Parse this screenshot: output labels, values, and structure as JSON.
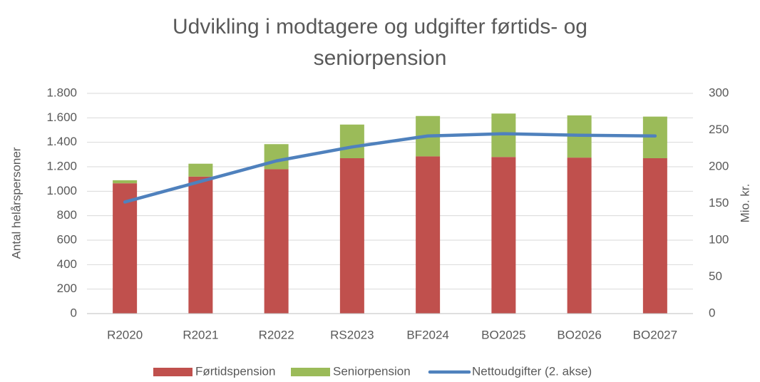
{
  "chart_data": {
    "type": "bar",
    "title": "Udvikling i modtagere og udgifter førtids- og seniorpension",
    "y_label": "Antal helårspersoner",
    "y2_label": "Mio. kr.",
    "categories": [
      "R2020",
      "R2021",
      "R2022",
      "RS2023",
      "BF2024",
      "BO2025",
      "BO2026",
      "BO2027"
    ],
    "series": [
      {
        "name": "Førtidspension",
        "color": "#c0504d",
        "type": "bar",
        "values": [
          1065,
          1120,
          1180,
          1270,
          1285,
          1280,
          1275,
          1270
        ]
      },
      {
        "name": "Seniorpension",
        "color": "#9bbb59",
        "type": "bar",
        "values": [
          25,
          105,
          205,
          275,
          330,
          355,
          345,
          340
        ]
      },
      {
        "name": "Nettoudgifter (2. akse)",
        "color": "#4f81bd",
        "type": "line",
        "axis": "y2",
        "values": [
          152,
          180,
          208,
          227,
          242,
          245,
          243,
          242
        ]
      }
    ],
    "stacked": true,
    "ylim": [
      0,
      1800
    ],
    "yticks": [
      0,
      200,
      400,
      600,
      800,
      {
        "value": 1000,
        "label": "1.000"
      },
      {
        "value": 1200,
        "label": "1.200"
      },
      {
        "value": 1400,
        "label": "1.400"
      },
      {
        "value": 1600,
        "label": "1.600"
      },
      {
        "value": 1800,
        "label": "1.800"
      }
    ],
    "y2lim": [
      0,
      300
    ],
    "y2ticks": [
      0,
      50,
      100,
      150,
      200,
      250,
      300
    ],
    "grid": true,
    "legend": "bottom"
  }
}
